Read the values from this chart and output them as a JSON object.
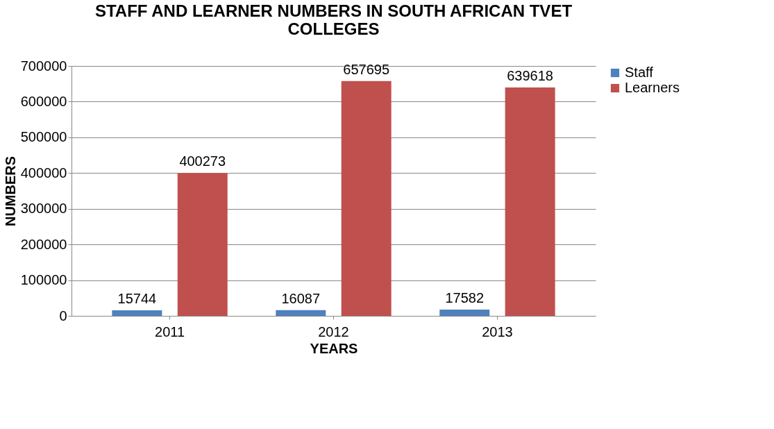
{
  "chart_data": {
    "type": "bar",
    "title": "STAFF AND LEARNER NUMBERS IN SOUTH AFRICAN TVET COLLEGES",
    "xlabel": "YEARS",
    "ylabel": "NUMBERS",
    "categories": [
      "2011",
      "2012",
      "2013"
    ],
    "series": [
      {
        "name": "Staff",
        "color": "#4f81bd",
        "values": [
          15744,
          16087,
          17582
        ]
      },
      {
        "name": "Learners",
        "color": "#c0504d",
        "values": [
          400273,
          657695,
          639618
        ]
      }
    ],
    "ylim": [
      0,
      700000
    ],
    "yticks": [
      0,
      100000,
      200000,
      300000,
      400000,
      500000,
      600000,
      700000
    ],
    "grid": "y",
    "legend": "right",
    "data_labels": true
  }
}
